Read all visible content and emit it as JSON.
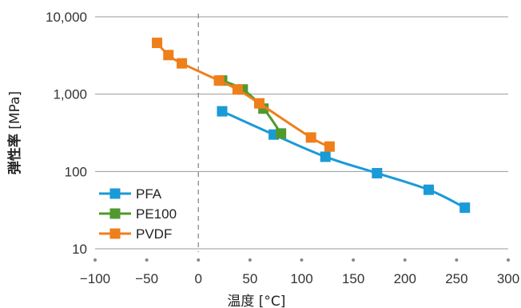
{
  "chart_data": {
    "type": "line",
    "xlabel": "温度 [°C]",
    "ylabel_main": "弾性率",
    "ylabel_unit": " [MPa]",
    "xlim": [
      -100,
      300
    ],
    "ylim": [
      10,
      10000
    ],
    "yscale": "log",
    "x_ticks": [
      -100,
      -50,
      0,
      50,
      100,
      150,
      200,
      250,
      300
    ],
    "x_tick_labels": [
      "−100",
      "−50",
      "0",
      "50",
      "100",
      "150",
      "200",
      "250",
      "300"
    ],
    "y_ticks": [
      10,
      100,
      1000,
      10000
    ],
    "y_tick_labels": [
      "10",
      "100",
      "1,000",
      "10,000"
    ],
    "reference_line_x": 0,
    "grid": "horizontal",
    "legend_position": "bottom-left",
    "series": [
      {
        "name": "PFA",
        "color": "#1a9ad7",
        "x": [
          23,
          73,
          123,
          173,
          223,
          258
        ],
        "y": [
          600,
          300,
          155,
          95,
          58,
          34
        ]
      },
      {
        "name": "PE100",
        "color": "#4f9a2e",
        "x": [
          23,
          43,
          63,
          80
        ],
        "y": [
          1500,
          1150,
          650,
          310
        ]
      },
      {
        "name": "PVDF",
        "color": "#ee7f1b",
        "x": [
          -40,
          -29,
          -16,
          20,
          38,
          59,
          109,
          127
        ],
        "y": [
          4600,
          3200,
          2500,
          1500,
          1150,
          760,
          275,
          210
        ]
      }
    ]
  }
}
